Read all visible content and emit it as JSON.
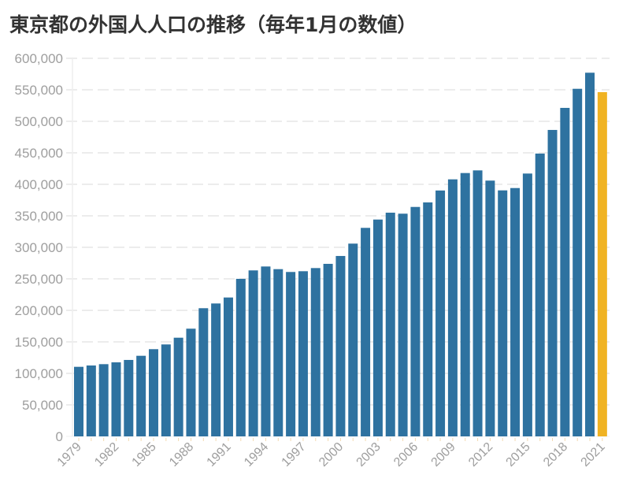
{
  "title": "東京都の外国人人口の推移（毎年1月の数値）",
  "colors": {
    "bar": "#2e72a0",
    "highlight": "#f0b323",
    "grid": "#e6e6e6",
    "axis_text": "#9e9e9e",
    "tick": "#f3d9b0"
  },
  "chart_data": {
    "type": "bar",
    "title": "東京都の外国人人口の推移（毎年1月の数値）",
    "xlabel": "",
    "ylabel": "",
    "ylim": [
      0,
      600000
    ],
    "yticks": [
      0,
      50000,
      100000,
      150000,
      200000,
      250000,
      300000,
      350000,
      400000,
      450000,
      500000,
      550000,
      600000
    ],
    "ytick_labels": [
      "0",
      "50,000",
      "100,000",
      "150,000",
      "200,000",
      "250,000",
      "300,000",
      "350,000",
      "400,000",
      "450,000",
      "500,000",
      "550,000",
      "600,000"
    ],
    "grid": true,
    "legend": null,
    "highlight_category": "2021",
    "categories": [
      "1979",
      "1980",
      "1981",
      "1982",
      "1983",
      "1984",
      "1985",
      "1986",
      "1987",
      "1988",
      "1989",
      "1990",
      "1991",
      "1992",
      "1993",
      "1994",
      "1995",
      "1996",
      "1997",
      "1998",
      "1999",
      "2000",
      "2001",
      "2002",
      "2003",
      "2004",
      "2005",
      "2006",
      "2007",
      "2008",
      "2009",
      "2010",
      "2011",
      "2012",
      "2013",
      "2014",
      "2015",
      "2016",
      "2017",
      "2018",
      "2019",
      "2020",
      "2021"
    ],
    "xtick_labels": [
      "1979",
      "1982",
      "1985",
      "1988",
      "1991",
      "1994",
      "1997",
      "2000",
      "2003",
      "2006",
      "2009",
      "2012",
      "2015",
      "2018",
      "2021"
    ],
    "values": [
      110400,
      112500,
      114600,
      117500,
      121300,
      127900,
      138400,
      145900,
      156600,
      170900,
      203400,
      210900,
      220400,
      250000,
      263400,
      269600,
      265400,
      260900,
      262100,
      267100,
      273800,
      286300,
      305900,
      330900,
      344100,
      355000,
      353400,
      364100,
      371300,
      390200,
      407900,
      417900,
      422100,
      405900,
      390400,
      394100,
      417100,
      448800,
      486300,
      521300,
      551600,
      577100,
      546300
    ]
  }
}
